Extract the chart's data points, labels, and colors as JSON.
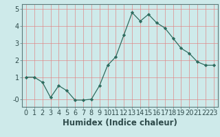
{
  "x": [
    0,
    1,
    2,
    3,
    4,
    5,
    6,
    7,
    8,
    9,
    10,
    11,
    12,
    13,
    14,
    15,
    16,
    17,
    18,
    19,
    20,
    21,
    22,
    23
  ],
  "y": [
    1.0,
    1.0,
    0.7,
    -0.2,
    0.5,
    0.2,
    -0.35,
    -0.35,
    -0.3,
    0.5,
    1.7,
    2.2,
    3.5,
    4.8,
    4.3,
    4.7,
    4.2,
    3.9,
    3.3,
    2.7,
    2.4,
    1.9,
    1.7,
    1.7
  ],
  "line_color": "#2e6b5e",
  "bg_color": "#ceeaea",
  "grid_color_v": "#e08080",
  "grid_color_h": "#e08080",
  "xlabel": "Humidex (Indice chaleur)",
  "ylabel_ticks": [
    "-0",
    "1",
    "2",
    "3",
    "4",
    "5"
  ],
  "yticks": [
    -0.3,
    1,
    2,
    3,
    4,
    5
  ],
  "ylim": [
    -0.75,
    5.3
  ],
  "xlim": [
    -0.5,
    23.5
  ],
  "xlabel_fontsize": 8.5,
  "tick_fontsize": 7,
  "tick_color": "#2e4a4a",
  "spine_color": "#5a7a7a"
}
